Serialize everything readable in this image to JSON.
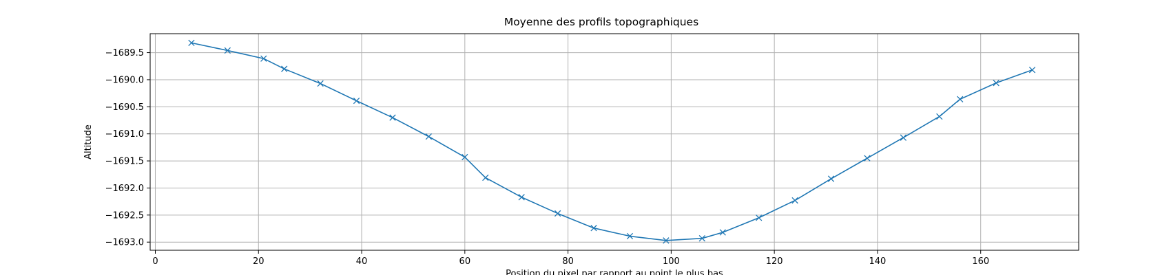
{
  "chart_data": {
    "type": "line",
    "title": "Moyenne des profils topographiques",
    "xlabel": "Position du pixel par rapport au point le plus bas",
    "ylabel": "Altitude",
    "xlim": [
      -1,
      179
    ],
    "ylim": [
      -1693.15,
      -1689.15
    ],
    "xticks": [
      0,
      20,
      40,
      60,
      80,
      100,
      120,
      140,
      160
    ],
    "yticks": [
      -1693.0,
      -1692.5,
      -1692.0,
      -1691.5,
      -1691.0,
      -1690.5,
      -1690.0,
      -1689.5
    ],
    "xtick_labels": [
      "0",
      "20",
      "40",
      "60",
      "80",
      "100",
      "120",
      "140",
      "160"
    ],
    "ytick_labels": [
      "−1693.0",
      "−1692.5",
      "−1692.0",
      "−1691.5",
      "−1691.0",
      "−1690.5",
      "−1690.0",
      "−1689.5"
    ],
    "grid": true,
    "marker": "x",
    "color": "#1f77b4",
    "series": [
      {
        "x": [
          7,
          14,
          21,
          25,
          32,
          39,
          46,
          53,
          60,
          64,
          71,
          78,
          85,
          92,
          99,
          106,
          110,
          117,
          124,
          131,
          138,
          145,
          152,
          156,
          163,
          170
        ],
        "y": [
          -1689.32,
          -1689.46,
          -1689.61,
          -1689.8,
          -1690.07,
          -1690.39,
          -1690.7,
          -1691.05,
          -1691.43,
          -1691.81,
          -1692.17,
          -1692.47,
          -1692.74,
          -1692.89,
          -1692.97,
          -1692.93,
          -1692.82,
          -1692.55,
          -1692.23,
          -1691.83,
          -1691.45,
          -1691.07,
          -1690.68,
          -1690.36,
          -1690.06,
          -1689.82
        ]
      }
    ]
  }
}
